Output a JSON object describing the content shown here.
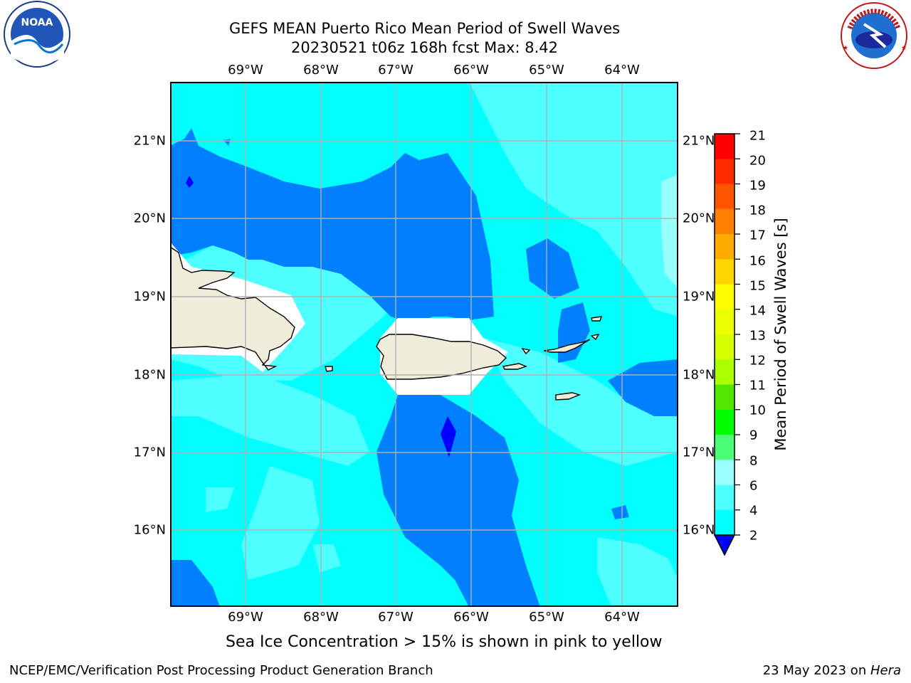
{
  "title": {
    "line1": "GEFS MEAN Puerto Rico Mean Period of Swell Waves",
    "line2": "20230521 t06z 168h fcst   Max: 8.42"
  },
  "axes": {
    "lon_labels": [
      "69°W",
      "68°W",
      "67°W",
      "66°W",
      "65°W",
      "64°W"
    ],
    "lat_labels": [
      "21°N",
      "20°N",
      "19°N",
      "18°N",
      "17°N",
      "16°N"
    ]
  },
  "colorbar": {
    "label": "Mean Period of Swell Waves [s]",
    "ticks": [
      "21",
      "20",
      "19",
      "18",
      "17",
      "16",
      "15",
      "14",
      "13",
      "12",
      "11",
      "10",
      "9",
      "8",
      "6",
      "4",
      "2"
    ],
    "colors": [
      "#ff0000",
      "#ff2a00",
      "#ff5500",
      "#ff8000",
      "#ffaa00",
      "#ffd500",
      "#ffff00",
      "#eaff00",
      "#d5ff00",
      "#aaff00",
      "#55e600",
      "#00ff00",
      "#4dff77",
      "#99ffff",
      "#4dffff",
      "#00ffff",
      "#0080ff"
    ],
    "under_color": "#0000ff"
  },
  "chart_data": {
    "type": "heatmap",
    "title": "GEFS MEAN Puerto Rico Mean Period of Swell Waves",
    "subtitle": "20230521 t06z 168h fcst   Max: 8.42",
    "variable": "Mean Period of Swell Waves [s]",
    "max": 8.42,
    "lon_range": [
      "-69.9",
      "-63.3"
    ],
    "lat_range": [
      "15.0",
      "21.8"
    ],
    "levels": [
      2,
      4,
      6,
      8,
      9,
      10,
      11,
      12,
      13,
      14,
      15,
      16,
      17,
      18,
      19,
      20,
      21
    ],
    "grid": true
  },
  "subtitle": "Sea Ice Concentration > 15% is shown in pink to yellow",
  "footer": {
    "left": "NCEP/EMC/Verification Post Processing Product Generation Branch",
    "right_date": "23 May 2023 on ",
    "right_host": "Hera"
  },
  "logos": {
    "noaa_text": "NOAA",
    "nws_text": "NATIONAL WEATHER SERVICE"
  }
}
